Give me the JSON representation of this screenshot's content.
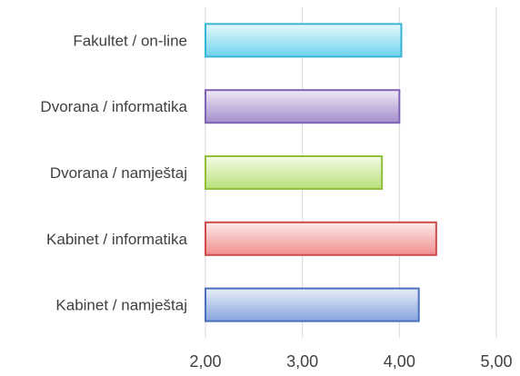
{
  "chart_data": {
    "type": "bar",
    "orientation": "horizontal",
    "categories": [
      "Fakultet / on-line",
      "Dvorana / informatika",
      "Dvorana / namještaj",
      "Kabinet / informatika",
      "Kabinet / namještaj"
    ],
    "values": [
      4.02,
      4.0,
      3.82,
      4.38,
      4.2
    ],
    "colors": [
      {
        "fill_top": "#e6f9fd",
        "fill_bottom": "#6fd3ec",
        "stroke": "#37b5d6"
      },
      {
        "fill_top": "#efe9f6",
        "fill_bottom": "#a48ccc",
        "stroke": "#7f62b3"
      },
      {
        "fill_top": "#f4fae6",
        "fill_bottom": "#b9e07a",
        "stroke": "#8fbf3c"
      },
      {
        "fill_top": "#fdeaea",
        "fill_bottom": "#f08e8e",
        "stroke": "#cf4a4a"
      },
      {
        "fill_top": "#e8eefa",
        "fill_bottom": "#86a4dc",
        "stroke": "#4a6fbf"
      }
    ],
    "xlim": [
      2,
      5
    ],
    "x_ticks": [
      "2,00",
      "3,00",
      "4,00",
      "5,00"
    ],
    "x_tick_values": [
      2,
      3,
      4,
      5
    ],
    "grid": "vertical",
    "title": "",
    "xlabel": "",
    "ylabel": ""
  }
}
